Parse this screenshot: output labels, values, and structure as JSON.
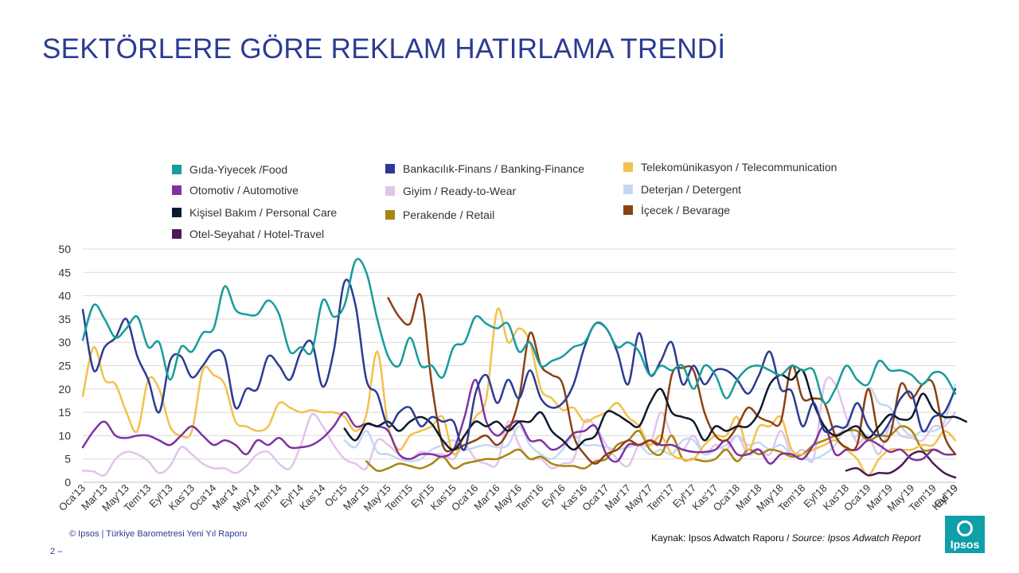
{
  "page": {
    "title": "SEKTÖRLERE GÖRE REKLAM HATIRLAMA TRENDİ",
    "footer_left": "© Ipsos | Türkiye Barometresi Yeni Yıl Raporu",
    "page_number": "2 –",
    "source_prefix": "Kaynak: Ipsos Adwatch Raporu / ",
    "source_italic": "Source: Ipsos Adwatch Report",
    "logo_text": "Ipsos"
  },
  "chart_data": {
    "type": "line",
    "title": "",
    "xlabel": "",
    "ylabel": "",
    "ylim": [
      0,
      50
    ],
    "yticks": [
      0,
      5,
      10,
      15,
      20,
      25,
      30,
      35,
      40,
      45,
      50
    ],
    "grid": "horizontal",
    "x_tick_labels": [
      "Oca'13",
      "Mar'13",
      "May'13",
      "Tem'13",
      "Eyl'13",
      "Kas'13",
      "Oca'14",
      "Mar'14",
      "May'14",
      "Tem'14",
      "Eyl'14",
      "Kas'14",
      "Oc'15",
      "Mar'15",
      "May'15",
      "Tem'15",
      "Eyl'15",
      "Kas'15",
      "Oca'16",
      "Mar'16",
      "May'16",
      "Tem'16",
      "Eyl'16",
      "Kas'16",
      "Oca'17",
      "Mar'17",
      "May'17",
      "Tem'17",
      "Eyl'17",
      "Kas'17",
      "Oca'18",
      "Mar'18",
      "May'18",
      "Tem'18",
      "Eyl'18",
      "Kas'18",
      "Oca'19",
      "Mar'19",
      "May'19",
      "Tem'19",
      "Eyl'19",
      "Kas'19"
    ],
    "series": [
      {
        "name": "Gıda-Yiyecek  /Food",
        "color": "#169c9a",
        "values": [
          30.5,
          38,
          35,
          31,
          33,
          35.5,
          29,
          30,
          22,
          29,
          28,
          32,
          33,
          42,
          37,
          36,
          36,
          39,
          36,
          28,
          29,
          28,
          39,
          35.5,
          38,
          47.5,
          45,
          35,
          27,
          25,
          31,
          25,
          25,
          22.5,
          29,
          30,
          35.5,
          34,
          33,
          34,
          28,
          30,
          25,
          26,
          27,
          29,
          30,
          34,
          33,
          29,
          30,
          28,
          23,
          25,
          24,
          25,
          20,
          25,
          23,
          18,
          22,
          24.5,
          25,
          24,
          23,
          25,
          24,
          24,
          17,
          20,
          25,
          22,
          21,
          26,
          24,
          24,
          23,
          21,
          23.5,
          23,
          19
        ]
      },
      {
        "name": "Otomotiv / Automotive",
        "color": "#8033a0",
        "values": [
          7.5,
          11,
          13,
          10,
          9.5,
          10,
          10,
          9,
          8,
          10,
          12,
          10,
          8,
          9,
          8,
          6,
          9,
          8,
          9.5,
          7.5,
          7.5,
          8,
          9.5,
          12,
          15,
          12,
          12.5,
          12,
          11,
          6,
          5,
          6,
          6,
          5.5,
          7,
          14,
          22,
          13,
          10,
          12,
          13,
          9,
          9,
          7,
          8,
          10.5,
          11,
          12,
          6,
          4.5,
          8,
          8,
          9,
          8,
          8,
          7,
          6.5,
          6.5,
          7,
          9,
          6,
          6,
          7,
          4,
          6,
          6,
          5,
          8,
          12,
          6,
          7,
          7,
          9,
          8,
          6.5,
          7,
          5,
          5,
          7,
          6,
          6
        ]
      },
      {
        "name": "Kişisel Bakım / Personal Care",
        "color": "#0d1a2d",
        "values": [
          null,
          null,
          null,
          null,
          null,
          null,
          null,
          null,
          null,
          null,
          null,
          null,
          null,
          null,
          null,
          null,
          null,
          null,
          null,
          null,
          null,
          null,
          null,
          null,
          11.5,
          9,
          12.5,
          12,
          13,
          11,
          13,
          14,
          12.5,
          9,
          7,
          10,
          13,
          12,
          13,
          11,
          13,
          13,
          15,
          11,
          9,
          7,
          9,
          10,
          15,
          14.5,
          13,
          12,
          17,
          20,
          15,
          14,
          13,
          9,
          12,
          11,
          12,
          12,
          15,
          21,
          23,
          22,
          24,
          17,
          12,
          10,
          11,
          12,
          9.5,
          12,
          14.5,
          13.5,
          14,
          19,
          15.5,
          14,
          14,
          13
        ]
      },
      {
        "name": "Otel-Seyahat / Hotel-Travel",
        "color": "#4a1a52",
        "values": [
          null,
          null,
          null,
          null,
          null,
          null,
          null,
          null,
          null,
          null,
          null,
          null,
          null,
          null,
          null,
          null,
          null,
          null,
          null,
          null,
          null,
          null,
          null,
          null,
          null,
          null,
          null,
          null,
          null,
          null,
          null,
          null,
          null,
          null,
          null,
          null,
          null,
          null,
          null,
          null,
          null,
          null,
          null,
          null,
          null,
          null,
          null,
          null,
          null,
          null,
          null,
          null,
          null,
          null,
          null,
          null,
          null,
          null,
          null,
          null,
          null,
          null,
          null,
          null,
          null,
          null,
          null,
          null,
          null,
          null,
          2.5,
          3,
          1.5,
          2,
          2,
          3.5,
          6,
          6.5,
          4,
          2,
          1
        ]
      },
      {
        "name": "Bankacılık-Finans  / Banking-Finance",
        "color": "#2b3b93",
        "values": [
          37,
          24,
          29,
          31,
          35,
          27,
          22,
          15,
          26,
          27,
          22.5,
          25,
          28,
          27,
          16,
          20,
          20,
          27,
          25,
          22,
          28,
          30,
          20.5,
          28,
          43,
          38,
          22,
          19,
          12,
          15,
          16,
          12,
          14,
          13,
          13,
          7,
          19,
          23,
          17,
          22,
          18,
          24,
          18,
          16,
          17,
          21,
          29,
          34,
          33,
          28,
          21,
          32,
          23,
          26,
          30,
          21,
          25,
          21,
          24,
          24,
          22,
          19,
          23,
          28,
          20,
          19.5,
          12,
          17,
          11,
          12,
          12,
          17,
          12,
          10,
          13,
          18,
          19,
          11,
          14,
          15,
          20
        ]
      },
      {
        "name": "Giyim / Ready-to-Wear",
        "color": "#e2c4ea",
        "values": [
          2.5,
          2.3,
          1.5,
          5,
          6.5,
          6,
          4.5,
          2,
          3.5,
          7.5,
          6,
          4,
          3,
          3,
          2,
          3.5,
          6,
          6.5,
          4,
          3,
          8,
          14.5,
          12,
          8,
          5,
          4,
          3,
          9,
          8,
          6,
          5,
          6.5,
          6,
          6,
          5,
          8,
          5,
          4,
          4,
          13,
          8,
          5,
          5,
          3,
          4,
          5,
          13,
          12,
          8,
          5,
          3.5,
          8,
          8,
          15,
          10,
          7,
          10,
          6,
          8,
          7,
          10,
          6,
          7,
          6,
          11,
          6,
          7,
          5,
          21,
          21,
          14,
          8.5,
          10,
          6,
          12,
          10,
          9.5,
          9,
          12,
          12,
          15
        ]
      },
      {
        "name": "Perakende / Retail",
        "color": "#a8850f",
        "values": [
          null,
          null,
          null,
          null,
          null,
          null,
          null,
          null,
          null,
          null,
          null,
          null,
          null,
          null,
          null,
          null,
          null,
          null,
          null,
          null,
          null,
          null,
          null,
          null,
          null,
          null,
          4.5,
          2.5,
          3,
          4,
          3.5,
          3,
          4,
          5.5,
          3,
          4,
          4.5,
          5,
          5,
          6,
          7,
          5,
          5.5,
          4,
          3.5,
          3.5,
          3,
          4.5,
          5,
          8,
          9,
          11,
          7,
          6,
          10,
          5,
          5,
          4.5,
          5,
          7,
          4.5,
          7,
          6,
          7,
          6.5,
          5.5,
          6,
          8,
          9,
          10,
          11,
          11,
          9,
          10,
          10,
          12,
          11,
          7,
          7,
          6
        ]
      },
      {
        "name": "Telekomünikasyon / Telecommunication",
        "color": "#f2c14e",
        "values": [
          18.5,
          29,
          22,
          21,
          15,
          11,
          22,
          20,
          12,
          10,
          11,
          24,
          23,
          21,
          13,
          12,
          11,
          12,
          17,
          16,
          15,
          15.5,
          15,
          15,
          14,
          11,
          14.5,
          28,
          12,
          7,
          10,
          11,
          12,
          14,
          6,
          10,
          14,
          18,
          37,
          30,
          33,
          30,
          20,
          18,
          15.5,
          16,
          13,
          14,
          15,
          17,
          14,
          12,
          8,
          10,
          6,
          5,
          5,
          8,
          10,
          10,
          14,
          7,
          12,
          12,
          14,
          7,
          6,
          7,
          8,
          9,
          7,
          5,
          1.5,
          5,
          7,
          7,
          7,
          8,
          8,
          11,
          9
        ]
      },
      {
        "name": "Deterjan / Detergent",
        "color": "#c4d8f4",
        "values": [
          null,
          null,
          null,
          null,
          null,
          null,
          null,
          null,
          null,
          null,
          null,
          null,
          null,
          null,
          null,
          null,
          null,
          null,
          null,
          null,
          null,
          null,
          null,
          null,
          9,
          7.5,
          11,
          6.5,
          6,
          5,
          4.5,
          5,
          7,
          8,
          9,
          7,
          7.5,
          8,
          7.5,
          8,
          12,
          8,
          6,
          5,
          7,
          10,
          8,
          8,
          7.5,
          7,
          7.5,
          8,
          6,
          7,
          6,
          9,
          9,
          6,
          7,
          8,
          10,
          8,
          8.5,
          7,
          8,
          6,
          5,
          5,
          6,
          8,
          12,
          10,
          20,
          17,
          16,
          12,
          10,
          11,
          11,
          13,
          21
        ]
      },
      {
        "name": "İçecek / Bevarage",
        "color": "#8b4014",
        "values": [
          null,
          null,
          null,
          null,
          null,
          null,
          null,
          null,
          null,
          null,
          null,
          null,
          null,
          null,
          null,
          null,
          null,
          null,
          null,
          null,
          null,
          null,
          null,
          null,
          null,
          null,
          null,
          null,
          39.5,
          35.5,
          34,
          40,
          21,
          8,
          7,
          8,
          9,
          10,
          8,
          11,
          18,
          32,
          25,
          23,
          21,
          10,
          6,
          4,
          6,
          7,
          9,
          8,
          9,
          9,
          23,
          24.5,
          24,
          15,
          10,
          9,
          12,
          16,
          14,
          13,
          13,
          25,
          18,
          18,
          17,
          10,
          7.5,
          8,
          20,
          10,
          10,
          21,
          18,
          21,
          21,
          10,
          6
        ]
      }
    ]
  }
}
